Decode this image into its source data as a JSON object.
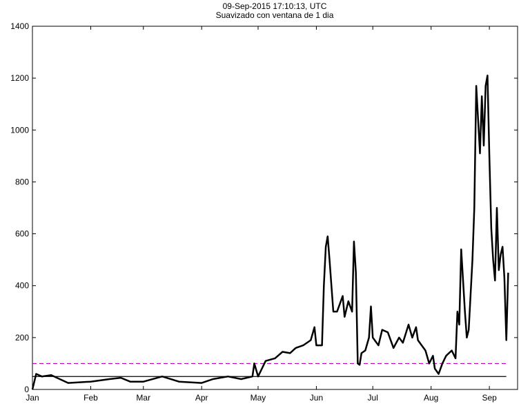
{
  "chart_data": {
    "type": "line",
    "title": "09-Sep-2015 17:10:13, UTC",
    "subtitle": "Suavizado con ventana de 1 dia",
    "x": [
      0,
      2,
      5,
      10,
      16,
      19,
      31,
      41,
      47,
      52,
      59,
      69,
      78,
      90,
      96,
      104,
      111,
      117,
      118,
      120,
      124,
      129,
      133,
      137,
      140,
      144,
      148,
      150,
      151,
      154,
      155,
      156,
      157,
      158,
      160,
      162,
      165,
      166,
      168,
      170,
      171,
      172,
      173,
      174,
      175,
      177,
      179,
      180,
      181,
      184,
      186,
      189,
      192,
      195,
      197,
      200,
      202,
      204,
      205,
      207,
      209,
      211,
      213,
      214,
      216,
      218,
      220,
      223,
      225,
      226,
      227,
      228,
      230,
      231,
      232,
      234,
      235,
      236,
      238,
      239,
      240,
      241,
      242,
      243,
      244,
      245,
      246,
      247,
      248,
      249,
      250,
      251,
      252,
      253
    ],
    "values": [
      0,
      60,
      50,
      55,
      35,
      25,
      30,
      40,
      45,
      30,
      30,
      50,
      30,
      25,
      40,
      50,
      40,
      50,
      100,
      50,
      110,
      120,
      145,
      140,
      160,
      170,
      190,
      240,
      170,
      170,
      400,
      550,
      590,
      500,
      300,
      300,
      360,
      280,
      340,
      300,
      570,
      450,
      100,
      95,
      140,
      150,
      200,
      320,
      200,
      170,
      230,
      220,
      160,
      200,
      180,
      250,
      200,
      240,
      190,
      170,
      150,
      100,
      130,
      80,
      60,
      100,
      130,
      150,
      120,
      300,
      250,
      540,
      300,
      200,
      230,
      500,
      700,
      1170,
      910,
      1130,
      940,
      1170,
      1210,
      900,
      620,
      500,
      420,
      700,
      460,
      520,
      550,
      430,
      190,
      450
    ],
    "color": "#000000",
    "hlines": [
      {
        "value": 100,
        "color": "#c000c0",
        "dash": true,
        "xrange": [
          0,
          252
        ]
      },
      {
        "value": 50,
        "color": "#000000",
        "dash": false,
        "xrange": [
          0,
          252
        ]
      }
    ],
    "xlim": [
      0,
      258
    ],
    "xticks": [
      {
        "value": 0,
        "label": "Jan"
      },
      {
        "value": 31,
        "label": "Feb"
      },
      {
        "value": 59,
        "label": "Mar"
      },
      {
        "value": 90,
        "label": "Apr"
      },
      {
        "value": 120,
        "label": "May"
      },
      {
        "value": 151,
        "label": "Jun"
      },
      {
        "value": 181,
        "label": "Jul"
      },
      {
        "value": 212,
        "label": "Aug"
      },
      {
        "value": 243,
        "label": "Sep"
      }
    ],
    "ylim": [
      0,
      1400
    ],
    "yticks": [
      0,
      200,
      400,
      600,
      800,
      1000,
      1200,
      1400
    ]
  }
}
